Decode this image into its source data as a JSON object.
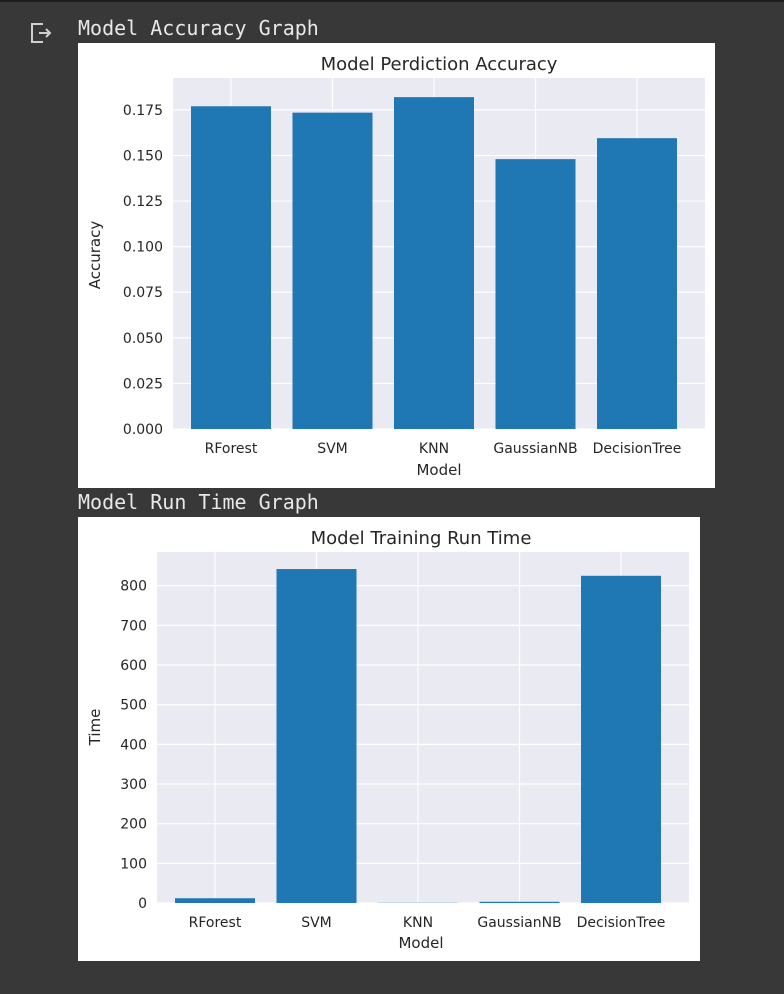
{
  "output": {
    "icon": "output-arrow-icon",
    "captions": [
      "Model Accuracy Graph",
      "Model Run Time Graph"
    ]
  },
  "chart_data": [
    {
      "type": "bar",
      "title": "Model Perdiction Accuracy",
      "xlabel": "Model",
      "ylabel": "Accuracy",
      "categories": [
        "RForest",
        "SVM",
        "KNN",
        "GaussianNB",
        "DecisionTree"
      ],
      "values": [
        0.177,
        0.1735,
        0.182,
        0.148,
        0.1595
      ],
      "ylim": [
        0,
        0.1925
      ],
      "yticks": [
        "0.000",
        "0.025",
        "0.050",
        "0.075",
        "0.100",
        "0.125",
        "0.150",
        "0.175"
      ],
      "ytick_values": [
        0,
        0.025,
        0.05,
        0.075,
        0.1,
        0.125,
        0.15,
        0.175
      ],
      "grid": true,
      "bar_color": "#1f77b4",
      "background": "#eaeaf2"
    },
    {
      "type": "bar",
      "title": "Model Training Run Time",
      "xlabel": "Model",
      "ylabel": "Time",
      "categories": [
        "RForest",
        "SVM",
        "KNN",
        "GaussianNB",
        "DecisionTree"
      ],
      "values": [
        12,
        842,
        0.5,
        3,
        825
      ],
      "ylim": [
        0,
        885
      ],
      "yticks": [
        "0",
        "100",
        "200",
        "300",
        "400",
        "500",
        "600",
        "700",
        "800"
      ],
      "ytick_values": [
        0,
        100,
        200,
        300,
        400,
        500,
        600,
        700,
        800
      ],
      "grid": true,
      "bar_color": "#1f77b4",
      "background": "#eaeaf2"
    }
  ]
}
